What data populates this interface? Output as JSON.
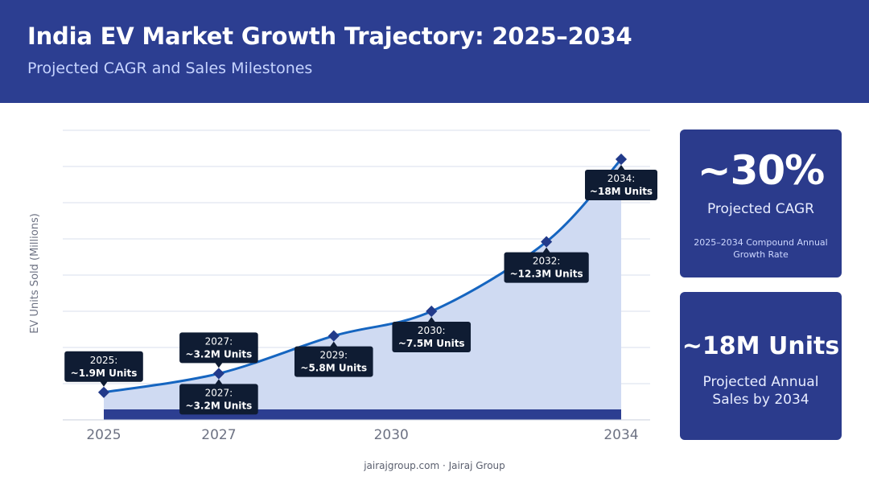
{
  "header": {
    "title": "India EV Market Growth Trajectory: 2025–2034",
    "subtitle": "Projected CAGR and Sales Milestones"
  },
  "chart_data": {
    "type": "area",
    "title": "India EV Market Growth Trajectory: 2025–2034",
    "subtitle": "Projected CAGR and Sales Milestones",
    "xlabel": "",
    "ylabel": "EV Units Sold (Millions)",
    "x_ticks": [
      2025,
      2027,
      2030,
      2034
    ],
    "xlim": [
      2025,
      2034
    ],
    "ylim": [
      0,
      20
    ],
    "grid": true,
    "points": [
      {
        "x": 2025,
        "y": 1.9
      },
      {
        "x": 2027,
        "y": 3.2
      },
      {
        "x": 2029,
        "y": 5.8
      },
      {
        "x": 2030.7,
        "y": 7.5
      },
      {
        "x": 2032.7,
        "y": 12.3
      },
      {
        "x": 2034,
        "y": 18
      }
    ],
    "annotations": [
      {
        "x": 2025,
        "y": 1.9,
        "line1": "2025:",
        "line2": "~1.9M Units",
        "position": "above"
      },
      {
        "x": 2027,
        "y": 3.2,
        "line1": "2027:",
        "line2": "~3.2M Units",
        "position": "above"
      },
      {
        "x": 2027,
        "y": 3.2,
        "line1": "2027:",
        "line2": "~3.2M Units",
        "position": "below"
      },
      {
        "x": 2029,
        "y": 5.8,
        "line1": "2029:",
        "line2": "~5.8M Units",
        "position": "below"
      },
      {
        "x": 2030.7,
        "y": 7.5,
        "line1": "2030:",
        "line2": "~7.5M Units",
        "position": "below"
      },
      {
        "x": 2032.7,
        "y": 12.3,
        "line1": "2032:",
        "line2": "~12.3M Units",
        "position": "below"
      },
      {
        "x": 2034,
        "y": 18,
        "line1": "2034:",
        "line2": "~18M Units",
        "position": "below"
      }
    ],
    "colors": {
      "line": "#1565c0",
      "fill": "#cfdaf2",
      "baseline": "#2c3e91",
      "marker": "#223a8a",
      "label_bg": "#0f1c33",
      "grid": "#d8dfee"
    }
  },
  "cards": {
    "cagr": {
      "value": "~30%",
      "label": "Projected CAGR",
      "note": "2025–2034 Compound Annual Growth Rate"
    },
    "sales": {
      "value": "~18M Units",
      "label": "Projected Annual Sales by 2034"
    }
  },
  "footer": {
    "text": "jairajgroup.com  ·  Jairaj Group"
  }
}
